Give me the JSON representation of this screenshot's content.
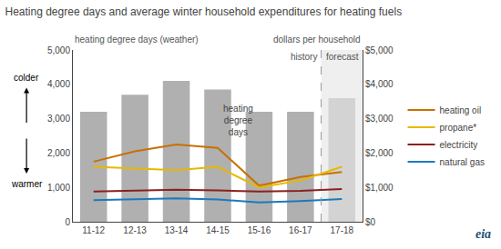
{
  "chart_data": {
    "type": "bar",
    "title": "Heating degree days and average winter household expenditures for heating fuels",
    "ylabel": "heating degree days (weather)",
    "y2label": "dollars per household",
    "categories": [
      "11-12",
      "12-13",
      "13-14",
      "14-15",
      "15-16",
      "16-17",
      "17-18"
    ],
    "series": [
      {
        "type": "bar",
        "colors": [
          "#b0b0b0",
          "#b0b0b0",
          "#b0b0b0",
          "#b0b0b0",
          "#b0b0b0",
          "#b0b0b0",
          "#d3d3d3"
        ],
        "values": [
          3200,
          3700,
          4100,
          3850,
          3200,
          3200,
          3600
        ]
      },
      {
        "name": "heating oil",
        "type": "line",
        "axis": "y2",
        "color": "#c87000",
        "values": [
          1750,
          2050,
          2250,
          2150,
          1050,
          1300,
          1450
        ]
      },
      {
        "name": "propane*",
        "type": "line",
        "axis": "y2",
        "color": "#e8b800",
        "values": [
          1600,
          1550,
          1500,
          1600,
          1000,
          1200,
          1600
        ]
      },
      {
        "name": "electricity",
        "type": "line",
        "axis": "y2",
        "color": "#8b2020",
        "values": [
          880,
          900,
          930,
          910,
          880,
          900,
          950
        ]
      },
      {
        "name": "natural gas",
        "type": "line",
        "axis": "y2",
        "color": "#1a7abf",
        "values": [
          630,
          650,
          680,
          650,
          560,
          600,
          660
        ]
      }
    ],
    "ylim": [
      0,
      5000
    ],
    "yticks": [
      0,
      {
        "value": 1000,
        "label": "1,000"
      },
      {
        "value": 2000,
        "label": "2,000"
      },
      {
        "value": 3000,
        "label": "3,000"
      },
      {
        "value": 4000,
        "label": "4,000"
      },
      {
        "value": 5000,
        "label": "5,000"
      }
    ],
    "y2lim": [
      0,
      5000
    ],
    "y2ticks": [
      {
        "value": 0,
        "label": "$0"
      },
      {
        "value": 1000,
        "label": "$1,000"
      },
      {
        "value": 2000,
        "label": "$2,000"
      },
      {
        "value": 3000,
        "label": "$3,000"
      },
      {
        "value": 4000,
        "label": "$4,000"
      },
      {
        "value": 5000,
        "label": "$5,000"
      }
    ],
    "annotations": {
      "history": "history",
      "forecast": "forecast",
      "bars": "heating\ndegree\ndays",
      "colder": "colder",
      "warmer": "warmer",
      "logo": "eia"
    },
    "grid": false,
    "legend": "right"
  }
}
